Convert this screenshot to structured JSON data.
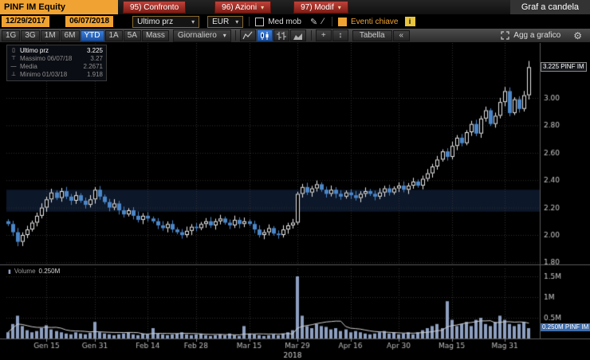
{
  "topbar": {
    "ticker": "PINF IM Equity",
    "buttons": [
      {
        "label": "95) Confronto"
      },
      {
        "label": "96) Azioni"
      },
      {
        "label": "97) Modif"
      }
    ],
    "title": "Graf a candela"
  },
  "toolbar": {
    "date_from": "12/29/2017",
    "date_to": "06/07/2018",
    "field_dropdown": "Ultimo prz",
    "currency_dropdown": "EUR",
    "med_mob_label": "Med mob",
    "eventi_label": "Eventi chiave"
  },
  "periodbar": {
    "periods": [
      "1G",
      "3G",
      "1M",
      "6M",
      "YTD",
      "1A",
      "5A",
      "Mass"
    ],
    "selected_period": "YTD",
    "frequency": "Giornaliero",
    "tabella_label": "Tabella",
    "collapse_label": "«",
    "agg_label": "Agg a grafico"
  },
  "legend": {
    "last_label": "Ultimo prz",
    "last_value": "3.225",
    "high_label": "Massimo 06/07/18",
    "high_value": "3.27",
    "avg_label": "Media",
    "avg_value": "2.2671",
    "low_label": "Minimo 01/03/18",
    "low_value": "1.918"
  },
  "badges": {
    "price": "3.225 PINF IM",
    "volume": "0.250M PINF IM"
  },
  "volume_panel": {
    "label": "Volume",
    "value": "0.250M"
  },
  "icons": {
    "arrow_down": "▾",
    "pencil": "✎",
    "slash": "⁄",
    "info": "i",
    "gear": "⚙",
    "updown": "↕",
    "crosshair": "+",
    "legend_candle": "▯",
    "legend_high": "⊤",
    "legend_avg": "—",
    "legend_low": "⊥",
    "volume_icon": "▮"
  },
  "colors": {
    "amber": "#f0a332",
    "red_button": "#b03a30",
    "selected_blue": "#2a6fd4"
  },
  "chart_data": {
    "type": "candlestick+volume",
    "title": "PINF IM Equity — Graf a candela",
    "security": "PINF IM",
    "currency": "EUR",
    "frequency": "Giornaliero",
    "date_range": [
      "12/29/2017",
      "06/07/2018"
    ],
    "last_price": 3.225,
    "stats": {
      "last": 3.225,
      "high": 3.27,
      "high_date": "06/07/18",
      "avg": 2.2671,
      "low": 1.918,
      "low_date": "01/03/18"
    },
    "last_volume_m": 0.25,
    "price_tick_values": [
      1.8,
      2.0,
      2.2,
      2.4,
      2.6,
      2.8,
      3.0
    ],
    "price_tick_labels": [
      "1.80",
      "2.00",
      "2.20",
      "2.40",
      "2.60",
      "2.80",
      "3.00"
    ],
    "price_range": [
      1.75,
      3.32
    ],
    "volume_tick_values": [
      0.5,
      1.0,
      1.5
    ],
    "volume_tick_labels": [
      "0.5M",
      "1M",
      "1.5M"
    ],
    "x_tick_labels": [
      "Gen 15",
      "Gen 31",
      "Feb 14",
      "Feb 28",
      "Mar 15",
      "Mar 29",
      "Apr 16",
      "Apr 30",
      "Mag 15",
      "Mag 31"
    ],
    "x_tick_indices": [
      8,
      18,
      29,
      39,
      50,
      60,
      71,
      81,
      92,
      103
    ],
    "year_label": "2018",
    "band": [
      2.17,
      2.33
    ],
    "first_open": 2.1,
    "close": [
      2.08,
      2.02,
      1.95,
      2.0,
      2.04,
      2.09,
      2.14,
      2.2,
      2.26,
      2.31,
      2.27,
      2.32,
      2.28,
      2.25,
      2.29,
      2.25,
      2.22,
      2.26,
      2.33,
      2.28,
      2.24,
      2.2,
      2.23,
      2.18,
      2.15,
      2.18,
      2.14,
      2.11,
      2.14,
      2.12,
      2.1,
      2.07,
      2.05,
      2.08,
      2.04,
      2.02,
      2.0,
      2.03,
      2.06,
      2.05,
      2.08,
      2.1,
      2.07,
      2.1,
      2.12,
      2.09,
      2.07,
      2.11,
      2.08,
      2.1,
      2.08,
      2.04,
      2.0,
      2.02,
      2.05,
      2.01,
      2.0,
      2.04,
      2.07,
      2.09,
      2.3,
      2.35,
      2.31,
      2.34,
      2.37,
      2.33,
      2.3,
      2.33,
      2.3,
      2.28,
      2.31,
      2.29,
      2.27,
      2.3,
      2.32,
      2.3,
      2.28,
      2.31,
      2.34,
      2.31,
      2.34,
      2.36,
      2.33,
      2.36,
      2.39,
      2.36,
      2.41,
      2.45,
      2.5,
      2.55,
      2.61,
      2.57,
      2.65,
      2.71,
      2.67,
      2.75,
      2.81,
      2.74,
      2.85,
      2.91,
      2.81,
      2.87,
      2.97,
      3.05,
      2.89,
      2.99,
      2.92,
      3.02,
      3.225
    ],
    "volume": [
      0.15,
      0.35,
      0.55,
      0.3,
      0.2,
      0.15,
      0.18,
      0.25,
      0.32,
      0.22,
      0.18,
      0.15,
      0.12,
      0.1,
      0.15,
      0.12,
      0.1,
      0.14,
      0.4,
      0.15,
      0.12,
      0.1,
      0.08,
      0.1,
      0.12,
      0.15,
      0.1,
      0.08,
      0.12,
      0.1,
      0.25,
      0.12,
      0.1,
      0.08,
      0.1,
      0.12,
      0.15,
      0.1,
      0.08,
      0.1,
      0.12,
      0.08,
      0.06,
      0.08,
      0.1,
      0.08,
      0.12,
      0.08,
      0.06,
      0.3,
      0.12,
      0.1,
      0.08,
      0.06,
      0.08,
      0.1,
      0.08,
      0.12,
      0.15,
      0.2,
      1.5,
      0.55,
      0.3,
      0.25,
      0.35,
      0.3,
      0.28,
      0.22,
      0.25,
      0.18,
      0.22,
      0.15,
      0.18,
      0.15,
      0.12,
      0.1,
      0.12,
      0.15,
      0.18,
      0.12,
      0.15,
      0.1,
      0.12,
      0.15,
      0.1,
      0.15,
      0.2,
      0.25,
      0.3,
      0.35,
      0.25,
      0.9,
      0.45,
      0.3,
      0.35,
      0.4,
      0.3,
      0.45,
      0.5,
      0.35,
      0.3,
      0.4,
      0.55,
      0.45,
      0.35,
      0.3,
      0.35,
      0.4,
      0.25
    ],
    "overrides": {
      "2": {
        "low": 1.918
      },
      "103": {
        "high": 3.08
      },
      "108": {
        "high": 3.27
      }
    },
    "colors": {
      "candle_up": "#e8e8e8",
      "candle_down": "#4a86c8",
      "volume_bar": "#8d9fc0"
    }
  }
}
